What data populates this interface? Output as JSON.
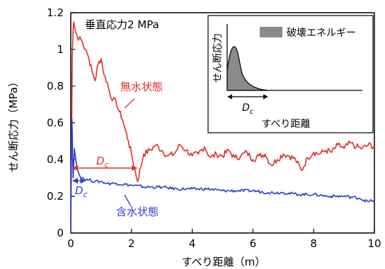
{
  "chart_data": {
    "type": "line",
    "annotation_stress": "垂直応力2 MPa",
    "xlabel": "すべり距離（m）",
    "ylabel": "せん断応力（MPa）",
    "xlim": [
      0,
      10
    ],
    "ylim": [
      0,
      1.2
    ],
    "x_ticks": [
      "0",
      "2",
      "4",
      "6",
      "8",
      "10"
    ],
    "y_ticks": [
      "0",
      "0.2",
      "0.4",
      "0.6",
      "0.8",
      "1",
      "1.2"
    ],
    "x_tick_values": [
      0,
      2,
      4,
      6,
      8,
      10
    ],
    "y_tick_values": [
      0,
      0.2,
      0.4,
      0.6,
      0.8,
      1.0,
      1.2
    ],
    "dc_label": "D",
    "dc_sub": "c",
    "dry_dc": 2.2,
    "wet_dc": 0.5,
    "series": [
      {
        "name": "無水状態",
        "color": "#e0302a",
        "x": [
          0.0,
          0.02,
          0.05,
          0.08,
          0.1,
          0.12,
          0.15,
          0.2,
          0.25,
          0.3,
          0.4,
          0.5,
          0.6,
          0.7,
          0.8,
          0.9,
          1.0,
          1.1,
          1.2,
          1.3,
          1.4,
          1.5,
          1.6,
          1.7,
          1.8,
          1.9,
          2.0,
          2.1,
          2.2,
          2.4,
          2.6,
          2.8,
          3.0,
          3.2,
          3.4,
          3.6,
          3.8,
          4.0,
          4.2,
          4.4,
          4.6,
          4.8,
          5.0,
          5.2,
          5.4,
          5.6,
          5.8,
          6.0,
          6.2,
          6.4,
          6.6,
          6.8,
          7.0,
          7.2,
          7.4,
          7.6,
          7.8,
          8.0,
          8.2,
          8.4,
          8.6,
          8.8,
          9.0,
          9.2,
          9.4,
          9.6,
          9.8,
          10.0
        ],
        "y": [
          0.0,
          0.4,
          0.95,
          1.12,
          1.15,
          1.13,
          1.1,
          1.08,
          1.05,
          1.07,
          1.03,
          1.0,
          0.95,
          0.88,
          0.83,
          0.92,
          0.95,
          0.86,
          0.82,
          0.75,
          0.73,
          0.71,
          0.66,
          0.62,
          0.56,
          0.5,
          0.43,
          0.35,
          0.28,
          0.43,
          0.45,
          0.48,
          0.45,
          0.42,
          0.43,
          0.48,
          0.45,
          0.42,
          0.43,
          0.47,
          0.41,
          0.43,
          0.42,
          0.45,
          0.41,
          0.42,
          0.44,
          0.4,
          0.42,
          0.43,
          0.37,
          0.4,
          0.43,
          0.42,
          0.4,
          0.34,
          0.41,
          0.44,
          0.43,
          0.45,
          0.44,
          0.48,
          0.46,
          0.49,
          0.47,
          0.46,
          0.48,
          0.47
        ]
      },
      {
        "name": "含水状態",
        "color": "#2a3fd0",
        "x": [
          0.0,
          0.01,
          0.02,
          0.03,
          0.04,
          0.05,
          0.06,
          0.08,
          0.1,
          0.12,
          0.15,
          0.2,
          0.25,
          0.3,
          0.4,
          0.5,
          0.6,
          0.8,
          1.0,
          1.2,
          1.5,
          2.0,
          2.5,
          3.0,
          3.5,
          4.0,
          4.5,
          5.0,
          5.5,
          6.0,
          6.5,
          7.0,
          7.5,
          8.0,
          8.5,
          9.0,
          9.5,
          9.8,
          10.0
        ],
        "y": [
          0.0,
          0.25,
          0.45,
          0.55,
          0.62,
          0.55,
          0.42,
          0.3,
          0.38,
          0.46,
          0.42,
          0.36,
          0.33,
          0.31,
          0.3,
          0.29,
          0.29,
          0.28,
          0.28,
          0.27,
          0.27,
          0.26,
          0.25,
          0.25,
          0.24,
          0.24,
          0.24,
          0.23,
          0.23,
          0.23,
          0.22,
          0.22,
          0.21,
          0.21,
          0.2,
          0.2,
          0.19,
          0.17,
          0.18
        ]
      }
    ],
    "inset": {
      "ylabel": "せん断応力",
      "xlabel": "すべり距離",
      "legend_label": "破壊エネルギー",
      "dc_label": "D",
      "dc_sub": "c",
      "fill_color": "#8a8a8a"
    }
  }
}
